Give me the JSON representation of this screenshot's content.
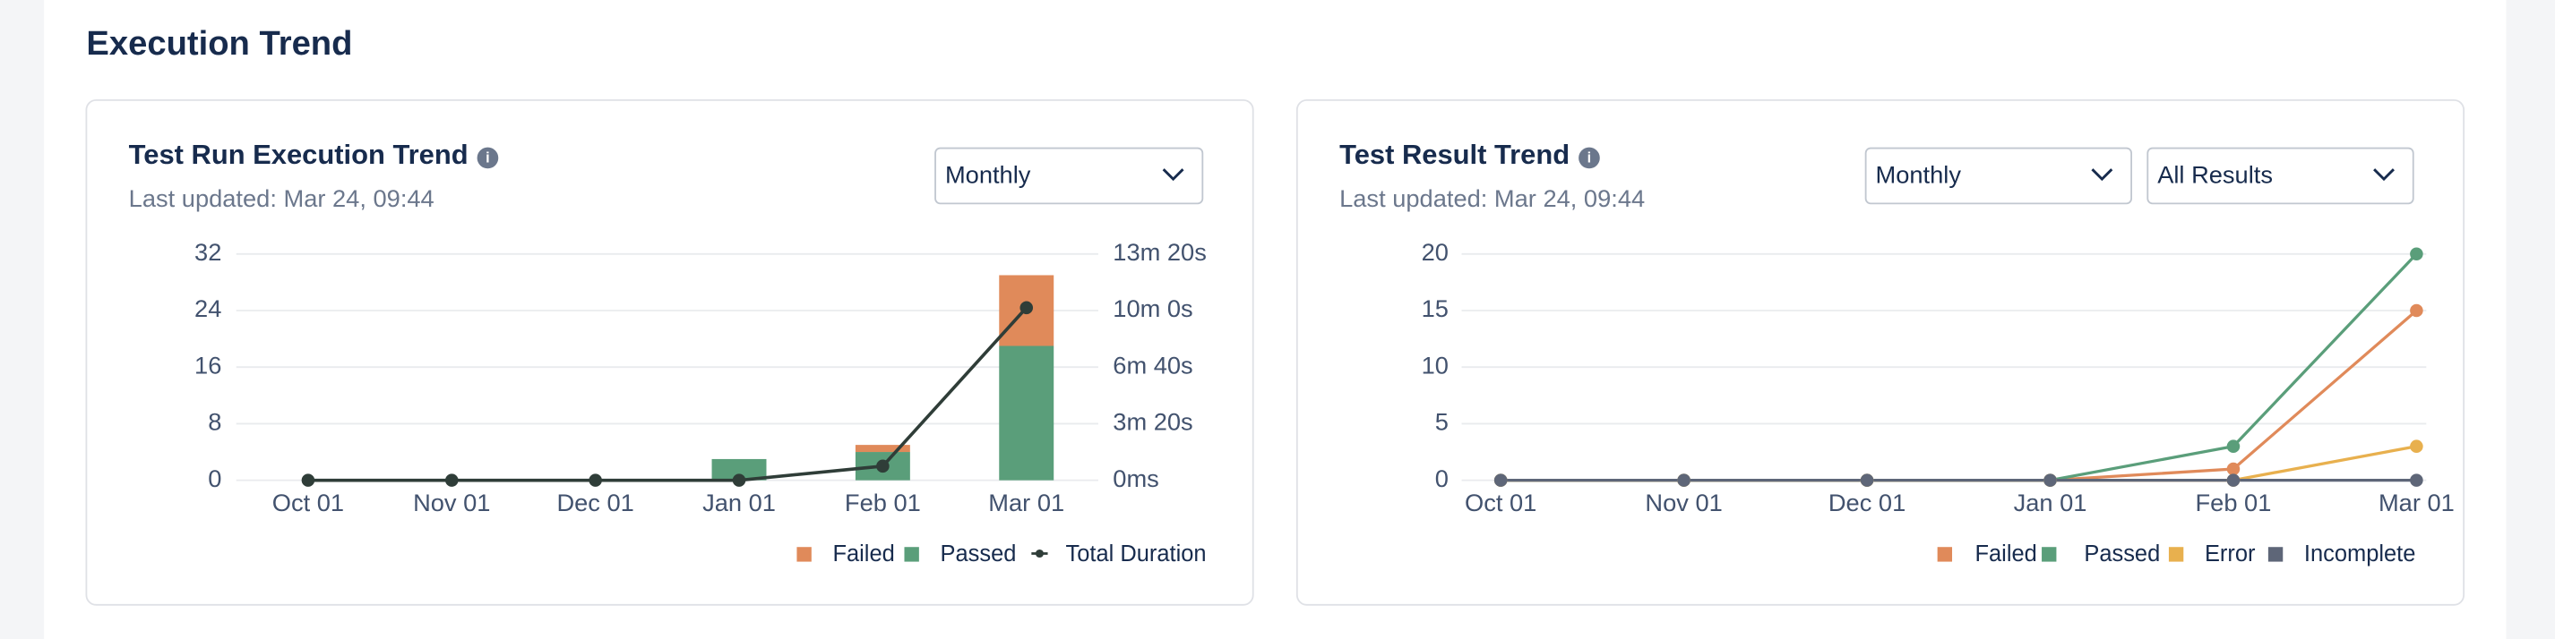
{
  "header": {
    "title": "Execution Trend"
  },
  "chart_data": [
    {
      "type": "bar",
      "title": "Test Run Execution Trend",
      "subtitle": "Last updated: Mar 24, 09:44",
      "controls": [
        "Monthly"
      ],
      "categories": [
        "Oct 01",
        "Nov 01",
        "Dec 01",
        "Jan 01",
        "Feb 01",
        "Mar 01"
      ],
      "series": [
        {
          "name": "Failed",
          "color": "#e08a5a",
          "values": [
            0,
            0,
            0,
            0,
            1,
            10
          ]
        },
        {
          "name": "Passed",
          "color": "#5a9e7a",
          "values": [
            0,
            0,
            0,
            3,
            4,
            19
          ]
        },
        {
          "name": "Total Duration",
          "color": "#2f3d38",
          "type": "line",
          "axis": "y2",
          "values": [
            0,
            0,
            0,
            0,
            50,
            610
          ]
        }
      ],
      "ylim": [
        0,
        32
      ],
      "yticks": [
        0,
        8,
        16,
        24,
        32
      ],
      "y2lim": [
        0,
        800
      ],
      "y2ticks": [
        {
          "value": 0,
          "label": "0ms"
        },
        {
          "value": 200,
          "label": "3m 20s"
        },
        {
          "value": 400,
          "label": "6m 40s"
        },
        {
          "value": 600,
          "label": "10m 0s"
        },
        {
          "value": 800,
          "label": "13m 20s"
        }
      ],
      "stacked": true,
      "grid": true,
      "legend": "bottom-right"
    },
    {
      "type": "line",
      "title": "Test Result Trend",
      "subtitle": "Last updated: Mar 24, 09:44",
      "controls": [
        "Monthly",
        "All Results"
      ],
      "categories": [
        "Oct 01",
        "Nov 01",
        "Dec 01",
        "Jan 01",
        "Feb 01",
        "Mar 01"
      ],
      "series": [
        {
          "name": "Failed",
          "color": "#e08a5a",
          "values": [
            0,
            0,
            0,
            0,
            1,
            15
          ]
        },
        {
          "name": "Passed",
          "color": "#5a9e7a",
          "values": [
            0,
            0,
            0,
            0,
            3,
            20
          ]
        },
        {
          "name": "Error",
          "color": "#e8b04e",
          "values": [
            0,
            0,
            0,
            0,
            0,
            3
          ]
        },
        {
          "name": "Incomplete",
          "color": "#5e6678",
          "values": [
            0,
            0,
            0,
            0,
            0,
            0
          ]
        }
      ],
      "ylim": [
        0,
        20
      ],
      "yticks": [
        0,
        5,
        10,
        15,
        20
      ],
      "grid": true,
      "legend": "bottom-right"
    }
  ]
}
